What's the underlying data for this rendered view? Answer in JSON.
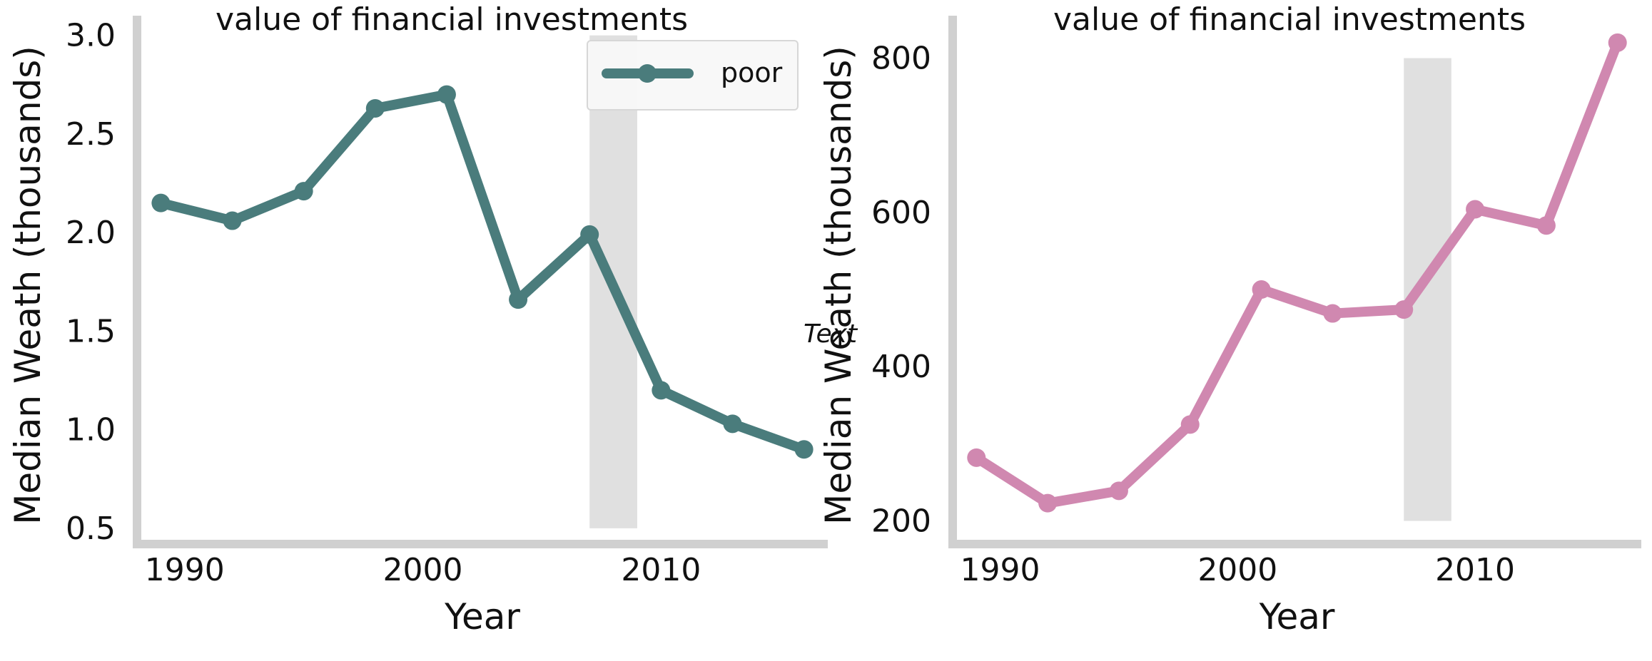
{
  "chart_data": [
    {
      "type": "line",
      "title": "value of financial investments",
      "xlabel": "Year",
      "ylabel": "Median Weath (thousands)",
      "x": [
        1989,
        1992,
        1995,
        1998,
        2001,
        2004,
        2007,
        2010,
        2013,
        2016
      ],
      "xticks": [
        1990,
        2000,
        2010
      ],
      "xlim": [
        1988,
        2017
      ],
      "yticks": [
        0.5,
        1.0,
        1.5,
        2.0,
        2.5,
        3.0
      ],
      "ytick_labels": [
        "0.5",
        "1.0",
        "1.5",
        "2.0",
        "2.5",
        "3.0"
      ],
      "ylim": [
        0.42,
        3.1
      ],
      "shaded_span": [
        2007,
        2009
      ],
      "shaded_y": [
        0.5,
        3.0
      ],
      "series": [
        {
          "name": "poor",
          "color": "#4a7c7c",
          "values": [
            2.15,
            2.06,
            2.21,
            2.63,
            2.7,
            1.66,
            1.99,
            1.2,
            1.03,
            0.9
          ]
        }
      ],
      "legend": {
        "position": "top-right",
        "entries": [
          "poor"
        ]
      },
      "grid": false
    },
    {
      "type": "line",
      "title": "value of financial investments",
      "xlabel": "Year",
      "ylabel": "Median Weath (thousands)",
      "x": [
        1989,
        1992,
        1995,
        1998,
        2001,
        2004,
        2007,
        2010,
        2013,
        2016
      ],
      "xticks": [
        1990,
        2000,
        2010
      ],
      "xlim": [
        1988,
        2017
      ],
      "yticks": [
        200,
        400,
        600,
        800
      ],
      "ytick_labels": [
        "200",
        "400",
        "600",
        "800"
      ],
      "ylim": [
        170,
        855
      ],
      "shaded_span": [
        2007,
        2009
      ],
      "shaded_y": [
        200,
        800
      ],
      "series": [
        {
          "color": "#d088b0",
          "values": [
            282,
            223,
            239,
            325,
            500,
            469,
            474,
            604,
            583,
            820
          ]
        }
      ],
      "grid": false
    }
  ],
  "annotation": {
    "text": "Text"
  }
}
